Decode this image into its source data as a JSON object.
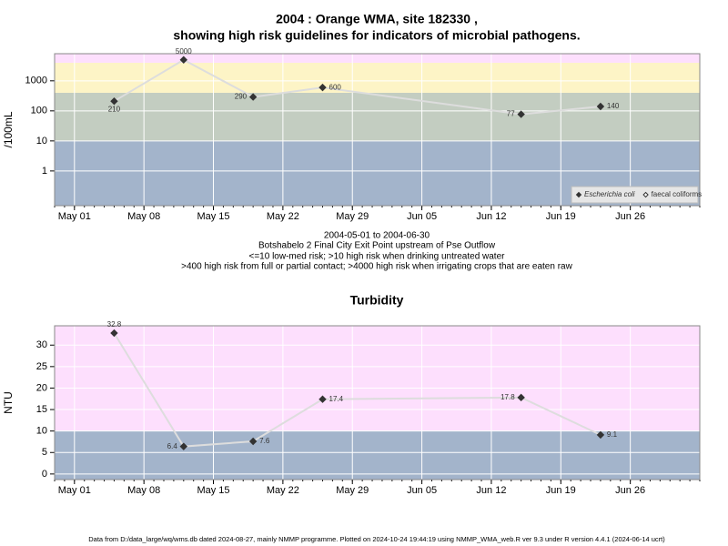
{
  "chart_data": [
    {
      "type": "line",
      "title": "2004 : Orange WMA, site 182330 ,",
      "subtitle": "showing high risk guidelines for indicators of microbial pathogens.",
      "y_label": "/100mL",
      "log_y": true,
      "grid": true,
      "legend": "bottom-right",
      "x": [
        "May 05",
        "May 12",
        "May 19",
        "May 26",
        "Jun 15",
        "Jun 23"
      ],
      "xlim": [
        "Apr 29",
        "Jul 03"
      ],
      "xticks": [
        "May 01",
        "May 08",
        "May 15",
        "May 22",
        "May 29",
        "Jun 05",
        "Jun 12",
        "Jun 19",
        "Jun 26"
      ],
      "ylim": [
        0.07,
        8000
      ],
      "yticks": [
        1,
        10,
        100,
        1000
      ],
      "thresholds": [
        10,
        400,
        4000
      ],
      "band_colors": [
        "#a3b4cb",
        "#c3cdc1",
        "#fdf4c6",
        "#fddffd"
      ],
      "series": [
        {
          "name": "Escherichia coli",
          "color": "#333333",
          "line_color": "#dddddd",
          "marker": "filled",
          "values": [
            210,
            5000,
            290,
            600,
            77,
            140
          ]
        },
        {
          "name": "faecal coliforms",
          "color": "#333333",
          "line_color": "#dddddd",
          "marker": "open",
          "values": [
            null,
            null,
            null,
            null,
            null,
            null
          ]
        }
      ],
      "notes": [
        "2004-05-01 to 2004-06-30",
        "Botshabelo 2 Final City Exit Point upstream of Pse Outflow",
        "<=10 low-med risk; >10 high risk when drinking untreated water",
        ">400 high risk from full or partial contact; >4000 high risk when irrigating crops that are eaten raw"
      ]
    },
    {
      "type": "line",
      "title": "Turbidity",
      "y_label": "NTU",
      "log_y": false,
      "grid": true,
      "x": [
        "May 05",
        "May 12",
        "May 19",
        "May 26",
        "Jun 15",
        "Jun 23"
      ],
      "xlim": [
        "Apr 29",
        "Jul 03"
      ],
      "xticks": [
        "May 01",
        "May 08",
        "May 15",
        "May 22",
        "May 29",
        "Jun 05",
        "Jun 12",
        "Jun 19",
        "Jun 26"
      ],
      "ylim": [
        -1.3,
        34.5
      ],
      "yticks": [
        0,
        5,
        10,
        15,
        20,
        25,
        30
      ],
      "thresholds": [
        10
      ],
      "band_colors": [
        "#a3b4cb",
        "#fddffd"
      ],
      "series": [
        {
          "name": "Turbidity",
          "color": "#333333",
          "line_color": "#dddddd",
          "marker": "filled",
          "values": [
            32.8,
            6.4,
            7.6,
            17.4,
            17.8,
            9.1
          ]
        }
      ],
      "footnote": "Data from D:/data_large/wq/wms.db dated 2024-08-27, mainly NMMP programme. Plotted on 2024-10-24 19:44:19 using NMMP_WMA_web.R ver 9.3 under R version 4.4.1 (2024-06-14 ucrt)"
    }
  ]
}
